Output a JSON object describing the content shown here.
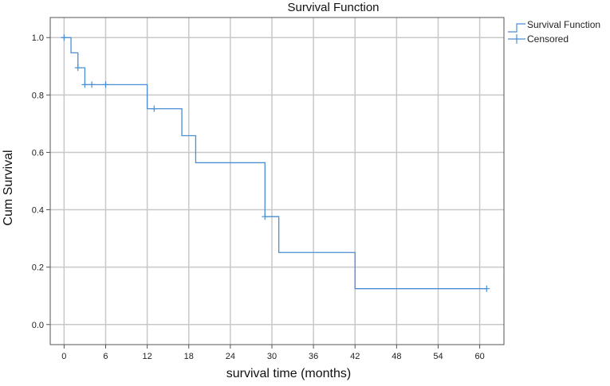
{
  "chart_data": {
    "type": "line",
    "title": "Survival Function",
    "xlabel": "survival time (months)",
    "ylabel": "Cum Survival",
    "xlim": [
      -2,
      63.5
    ],
    "ylim": [
      -0.07,
      1.07
    ],
    "xticks": [
      0,
      6,
      12,
      18,
      24,
      30,
      36,
      42,
      48,
      54,
      60
    ],
    "yticks": [
      0.0,
      0.2,
      0.4,
      0.6,
      0.8,
      1.0
    ],
    "grid": true,
    "legend_position": "top-right",
    "colors": {
      "series": "#4a8fd6",
      "grid": "#c8c8c8",
      "frame": "#555555"
    },
    "series": [
      {
        "name": "Survival Function",
        "style": "step",
        "x": [
          0,
          1,
          2,
          3,
          12,
          17,
          19,
          29,
          31,
          42,
          61
        ],
        "y": [
          1.0,
          0.947,
          0.895,
          0.836,
          0.752,
          0.658,
          0.564,
          0.376,
          0.251,
          0.125,
          0.125
        ]
      },
      {
        "name": "Censored",
        "style": "marker-plus",
        "x": [
          0,
          2,
          3,
          4,
          6,
          13,
          29,
          61
        ],
        "y": [
          1.0,
          0.895,
          0.836,
          0.836,
          0.836,
          0.752,
          0.376,
          0.125
        ]
      }
    ]
  }
}
